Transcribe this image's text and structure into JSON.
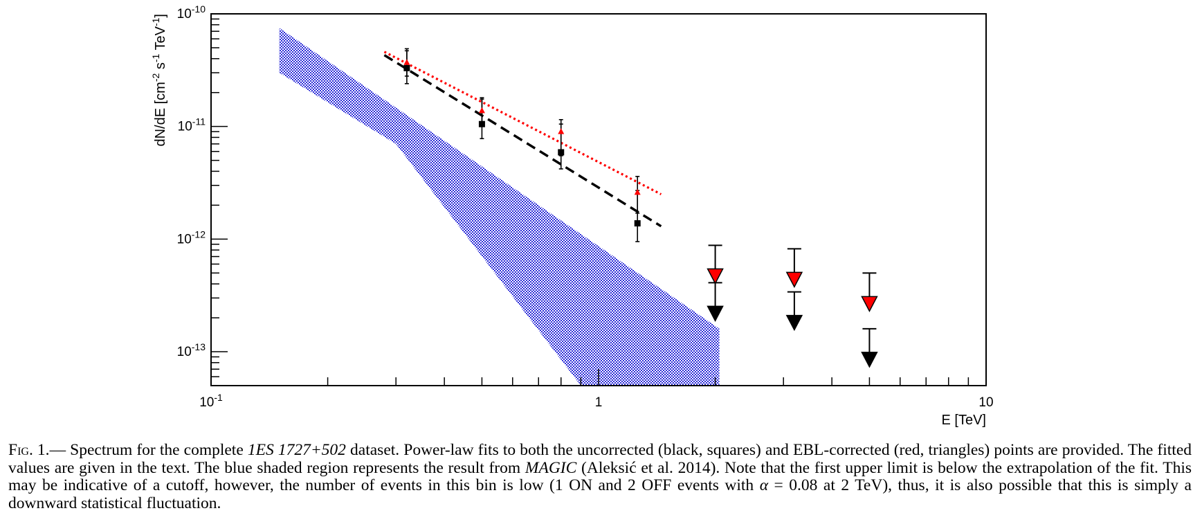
{
  "chart_data": {
    "type": "scatter",
    "title": "",
    "xlabel": "E [TeV]",
    "ylabel": "dN/dE [cm-2 s-1 TeV-1]",
    "xscale": "log",
    "yscale": "log",
    "xlim": [
      0.1,
      10
    ],
    "ylim": [
      5e-14,
      1e-10
    ],
    "x_tick_labels": [
      "10-1",
      "1",
      "10"
    ],
    "y_tick_labels": [
      "10-10",
      "10-11",
      "10-12",
      "10-13"
    ],
    "grid": false,
    "series": [
      {
        "marker": "square",
        "color": "#000000",
        "points": [
          {
            "x": 0.32,
            "y": 3.3e-11,
            "y_low": 2.4e-11,
            "y_high": 4.7e-11
          },
          {
            "x": 0.5,
            "y": 1.05e-11,
            "y_low": 7.8e-12,
            "y_high": 1.75e-11
          },
          {
            "x": 0.8,
            "y": 5.9e-12,
            "y_low": 4.2e-12,
            "y_high": 1.05e-11
          },
          {
            "x": 1.26,
            "y": 1.38e-12,
            "y_low": 9.5e-13,
            "y_high": 2.7e-12
          }
        ],
        "upper_limits": [
          {
            "x": 2.0,
            "y": 4.1e-13
          },
          {
            "x": 3.2,
            "y": 3.4e-13
          },
          {
            "x": 5.0,
            "y": 1.6e-13
          }
        ],
        "fit": {
          "style": "dashed",
          "x": [
            0.28,
            1.45
          ],
          "y": [
            4.3e-11,
            1.3e-12
          ]
        }
      },
      {
        "marker": "triangle",
        "color": "#ff0000",
        "points": [
          {
            "x": 0.32,
            "y": 3.7e-11,
            "y_low": 2.8e-11,
            "y_high": 4.9e-11
          },
          {
            "x": 0.5,
            "y": 1.38e-11,
            "y_low": 1e-11,
            "y_high": 1.8e-11
          },
          {
            "x": 0.8,
            "y": 9e-12,
            "y_low": 5.5e-12,
            "y_high": 1.15e-11
          },
          {
            "x": 1.26,
            "y": 2.6e-12,
            "y_low": 1.7e-12,
            "y_high": 3.6e-12
          }
        ],
        "upper_limits": [
          {
            "x": 2.0,
            "y": 8.8e-13
          },
          {
            "x": 3.2,
            "y": 8.2e-13
          },
          {
            "x": 5.0,
            "y": 5e-13
          }
        ],
        "fit": {
          "style": "dotted",
          "x": [
            0.28,
            1.45
          ],
          "y": [
            4.6e-11,
            2.5e-12
          ]
        }
      }
    ],
    "band": {
      "color": "#2020d0",
      "upper": [
        [
          0.15,
          7.5e-11
        ],
        [
          2.05,
          1.6e-13
        ]
      ],
      "lower": [
        [
          0.15,
          3e-11
        ],
        [
          0.3,
          7e-12
        ],
        [
          0.9,
          5e-14
        ]
      ]
    }
  },
  "caption": {
    "label": "Fig. 1.",
    "text_1": "— Spectrum for the complete ",
    "source": "1ES 1727+502",
    "text_2": " dataset. Power-law fits to both the uncorrected (black, squares) and EBL-corrected (red, triangles) points are provided. The fitted values are given in the text. The blue shaded region represents the result from ",
    "magic": "MAGIC",
    "text_3": " (Aleksić et al. 2014). Note that the first upper limit is below the extrapolation of the fit. This may be indicative of a cutoff, however, the number of events in this bin is low (1 ON and 2 OFF events with ",
    "alpha": "α",
    "text_4": " = 0.08 at 2 TeV), thus, it is also possible that this is simply a downward statistical fluctuation."
  }
}
